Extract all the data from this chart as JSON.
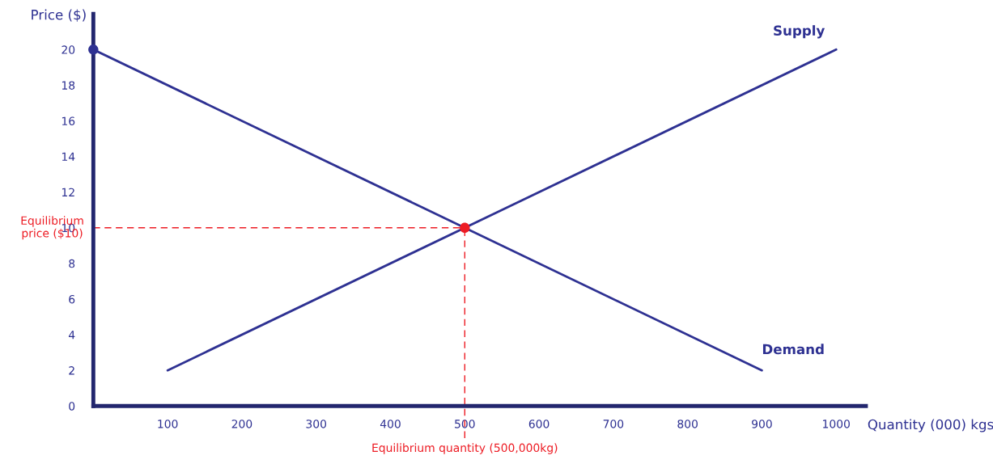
{
  "chart_data": {
    "type": "line",
    "xlabel": "Quantity (000) kgs",
    "ylabel": "Price ($)",
    "series": [
      {
        "name": "Supply",
        "color": "#2e3192",
        "x": [
          100,
          1000
        ],
        "values": [
          2,
          20
        ]
      },
      {
        "name": "Demand",
        "color": "#2e3192",
        "x": [
          0,
          900
        ],
        "values": [
          20,
          2
        ]
      },
      {
        "type": "scatter",
        "marker": "circle",
        "color": "#2e3192",
        "x": [
          0
        ],
        "values": [
          20
        ]
      },
      {
        "type": "scatter",
        "marker": "circle",
        "color": "#ed1c24",
        "x": [
          500
        ],
        "values": [
          10
        ]
      }
    ],
    "ref_lines": [
      {
        "axis": "y",
        "value": 10,
        "label": "Equilibrium\nprice ($10)",
        "color": "#ed1c24",
        "line_style": "dashed"
      },
      {
        "axis": "x",
        "value": 500,
        "label": "Equilibrium quantity (500,000kg)",
        "color": "#ed1c24",
        "line_style": "dashed"
      }
    ],
    "xlim": [
      0,
      1040
    ],
    "ylim": [
      0,
      22
    ],
    "xticks": [
      100,
      200,
      300,
      400,
      500,
      600,
      700,
      800,
      900,
      1000
    ],
    "yticks": [
      0,
      2,
      4,
      6,
      8,
      10,
      12,
      14,
      16,
      18,
      20
    ],
    "grid": false,
    "legend": false,
    "marker": "none",
    "line_style": "solid"
  }
}
